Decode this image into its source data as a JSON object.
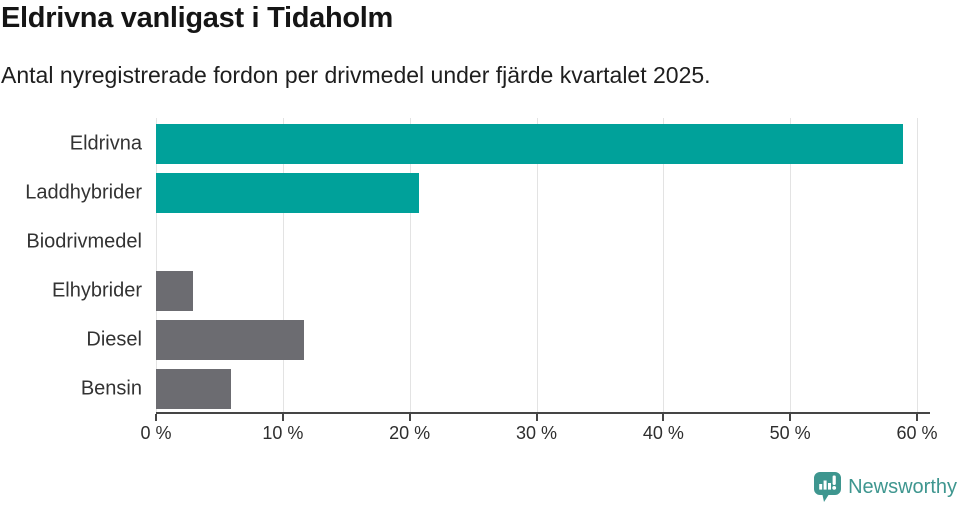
{
  "chart": {
    "title": "Eldrivna vanligast i Tidaholm",
    "subtitle": "Antal nyregistrerade fordon per drivmedel under fjärde kvartalet 2025."
  },
  "chart_data": {
    "type": "bar",
    "orientation": "horizontal",
    "title": "Eldrivna vanligast i Tidaholm",
    "subtitle": "Antal nyregistrerade fordon per drivmedel under fjärde kvartalet 2025.",
    "categories": [
      "Eldrivna",
      "Laddhybrider",
      "Biodrivmedel",
      "Elhybrider",
      "Diesel",
      "Bensin"
    ],
    "values": [
      58.9,
      20.7,
      0,
      2.9,
      11.7,
      5.9
    ],
    "unit": "%",
    "bar_colors": [
      "#00a19a",
      "#00a19a",
      "#00a19a",
      "#6c6c71",
      "#6c6c71",
      "#6c6c71"
    ],
    "xlabel": "",
    "ylabel": "",
    "xlim": [
      0,
      60
    ],
    "tick_labels": [
      "0 %",
      "10 %",
      "20 %",
      "30 %",
      "40 %",
      "50 %",
      "60 %"
    ],
    "grid": true,
    "legend": false
  },
  "footer": {
    "brand": "Newsworthy"
  },
  "colors": {
    "teal": "#00a19a",
    "gray": "#6c6c71",
    "logo_teal": "#3e968f",
    "gridline": "#e3e3e3",
    "axis": "#454545"
  }
}
